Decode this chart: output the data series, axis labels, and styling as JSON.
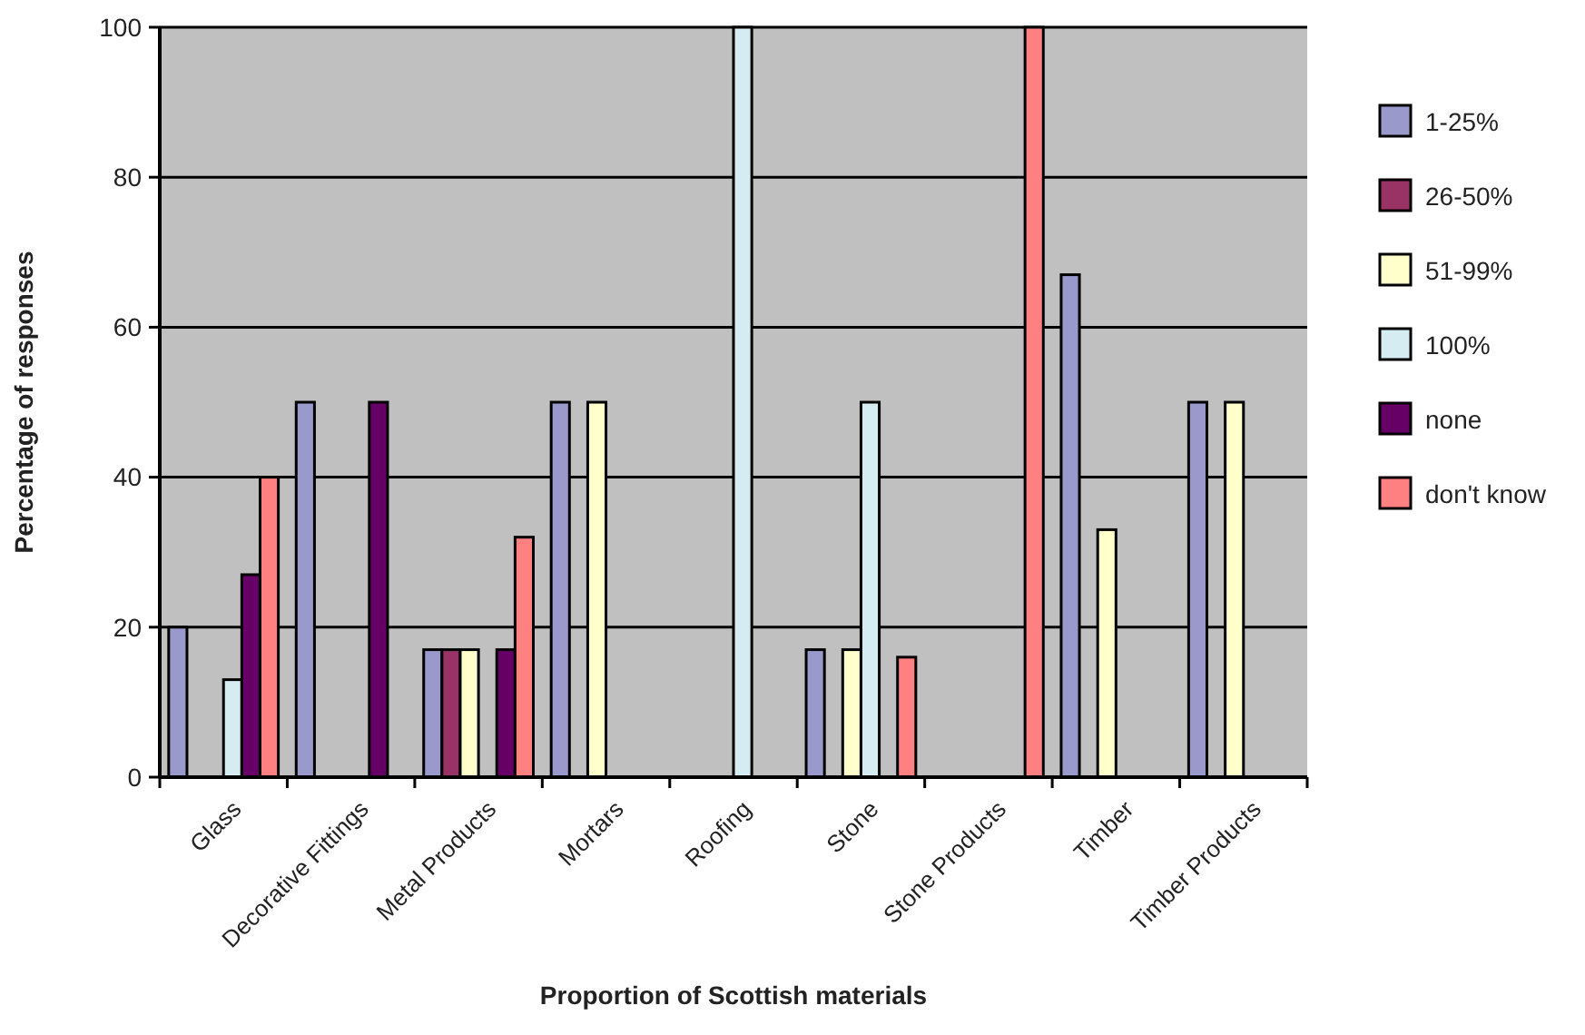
{
  "chart_data": {
    "type": "bar",
    "xlabel": "Proportion of Scottish materials",
    "ylabel": "Percentage of responses",
    "categories": [
      "Glass",
      "Decorative Fittings",
      "Metal Products",
      "Mortars",
      "Roofing",
      "Stone",
      "Stone Products",
      "Timber",
      "Timber Products"
    ],
    "series": [
      {
        "name": "1-25%",
        "color": "#9999cc",
        "values": [
          20,
          50,
          17,
          50,
          null,
          17,
          null,
          67,
          50
        ]
      },
      {
        "name": "26-50%",
        "color": "#993366",
        "values": [
          null,
          null,
          17,
          null,
          null,
          null,
          null,
          null,
          null
        ]
      },
      {
        "name": "51-99%",
        "color": "#ffffcc",
        "values": [
          null,
          null,
          17,
          50,
          null,
          17,
          null,
          33,
          50
        ]
      },
      {
        "name": "100%",
        "color": "#d4ecf2",
        "values": [
          13,
          null,
          null,
          null,
          100,
          50,
          null,
          null,
          null
        ]
      },
      {
        "name": "none",
        "color": "#660066",
        "values": [
          27,
          50,
          17,
          null,
          null,
          null,
          null,
          null,
          null
        ]
      },
      {
        "name": "don't know",
        "color": "#ff8080",
        "values": [
          40,
          null,
          32,
          null,
          null,
          16,
          100,
          null,
          null
        ]
      }
    ],
    "ylim": [
      0,
      100
    ],
    "yticks": [
      0,
      20,
      40,
      60,
      80,
      100
    ],
    "grid": "y",
    "legend": "right"
  }
}
